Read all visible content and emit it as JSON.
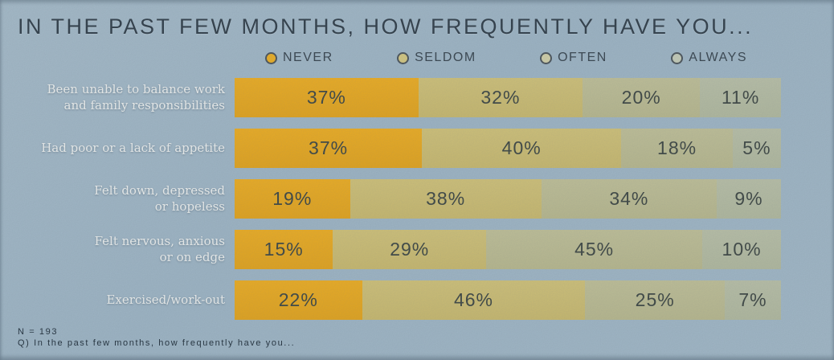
{
  "page_title": "IN THE PAST FEW MONTHS, HOW FREQUENTLY HAVE YOU...",
  "legend": {
    "items": [
      {
        "label": "NEVER",
        "color": "#f0b01f"
      },
      {
        "label": "SELDOM",
        "color": "#d8ca80"
      },
      {
        "label": "OFTEN",
        "color": "#d5d2a9"
      },
      {
        "label": "ALWAYS",
        "color": "#c8ceb9"
      }
    ]
  },
  "chart_data": {
    "type": "bar",
    "orientation": "horizontal",
    "stacked": true,
    "unit": "%",
    "xlim": [
      0,
      100
    ],
    "grid": false,
    "legend_position": "top",
    "value_labels": "inside-center",
    "categories": [
      "Been unable to balance work\nand family responsibilities",
      "Had poor or a lack of appetite",
      "Felt down, depressed\nor hopeless",
      "Felt nervous, anxious\nor on edge",
      "Exercised/work-out"
    ],
    "series": [
      {
        "name": "NEVER",
        "color": "#f1ae1d",
        "color_bottom": "#e6a418",
        "values": [
          37,
          37,
          19,
          15,
          22
        ]
      },
      {
        "name": "SELDOM",
        "color": "#d3c377",
        "color_bottom": "#cbba6c",
        "values": [
          32,
          40,
          38,
          29,
          46
        ]
      },
      {
        "name": "OFTEN",
        "color": "#c2c197",
        "color_bottom": "#bab98d",
        "values": [
          20,
          18,
          34,
          45,
          25
        ]
      },
      {
        "name": "ALWAYS",
        "color": "#bbc1a7",
        "color_bottom": "#b3ba9e",
        "values": [
          11,
          5,
          9,
          10,
          7
        ]
      }
    ]
  },
  "footer": {
    "n_label": "N = 193",
    "question": "Q) In the past few months, how frequently have you..."
  }
}
